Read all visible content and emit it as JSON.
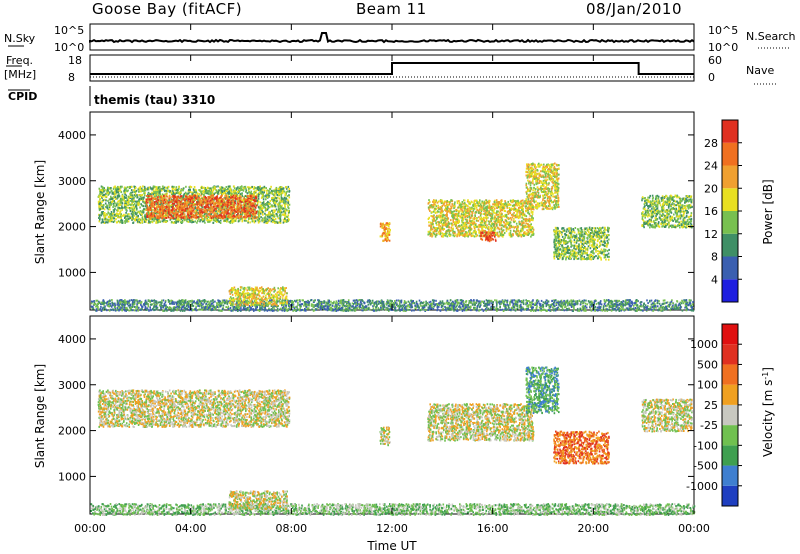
{
  "header": {
    "station": "Goose Bay (fitACF)",
    "beam": "Beam 11",
    "date": "08/Jan/2010"
  },
  "status_panels": {
    "nsky_label": "N.Sky",
    "nsky_ticks": [
      "10^5",
      "10^0"
    ],
    "nsearch_label": "N.Search",
    "nsearch_ticks": [
      "10^5",
      "10^0"
    ],
    "freq_label_1": "Freq.",
    "freq_label_2": "[MHz]",
    "freq_ticks": [
      "18",
      "8"
    ],
    "nave_label": "Nave",
    "nave_ticks": [
      "60",
      "0"
    ],
    "cpid_label": "CPID",
    "cpid_text": "themis (tau) 3310"
  },
  "chart_data": [
    {
      "type": "heatmap",
      "name": "power",
      "ylabel": "Slant Range [km]",
      "yticks": [
        "1000",
        "2000",
        "3000",
        "4000"
      ],
      "ylim": [
        180,
        4500
      ],
      "xlim": [
        0,
        24
      ],
      "colorbar": {
        "label": "Power [dB]",
        "ticks": [
          "4",
          "8",
          "12",
          "16",
          "20",
          "24",
          "28"
        ],
        "colors": [
          "#1f1fe0",
          "#3a5fb0",
          "#3f8f66",
          "#78c050",
          "#e8e020",
          "#f0a030",
          "#f07020",
          "#e03020"
        ]
      },
      "regions": [
        {
          "t0": 0.3,
          "t1": 7.9,
          "r0": 2100,
          "r1": 2900,
          "level": 3
        },
        {
          "t0": 2.2,
          "t1": 6.6,
          "r0": 2200,
          "r1": 2700,
          "level": 6
        },
        {
          "t0": 11.5,
          "t1": 11.9,
          "r0": 1700,
          "r1": 2100,
          "level": 5
        },
        {
          "t0": 13.4,
          "t1": 17.6,
          "r0": 1800,
          "r1": 2600,
          "level": 4
        },
        {
          "t0": 15.5,
          "t1": 16.1,
          "r0": 1700,
          "r1": 1900,
          "level": 7
        },
        {
          "t0": 17.3,
          "t1": 18.6,
          "r0": 2400,
          "r1": 3400,
          "level": 4
        },
        {
          "t0": 18.4,
          "t1": 20.6,
          "r0": 1300,
          "r1": 2000,
          "level": 3
        },
        {
          "t0": 21.9,
          "t1": 23.9,
          "r0": 2000,
          "r1": 2700,
          "level": 3
        },
        {
          "t0": 0.0,
          "t1": 24.0,
          "r0": 180,
          "r1": 420,
          "level": 2
        },
        {
          "t0": 5.5,
          "t1": 7.8,
          "r0": 300,
          "r1": 700,
          "level": 4
        }
      ]
    },
    {
      "type": "heatmap",
      "name": "velocity",
      "ylabel": "Slant Range [km]",
      "yticks": [
        "1000",
        "2000",
        "3000",
        "4000"
      ],
      "ylim": [
        180,
        4500
      ],
      "xlim": [
        0,
        24
      ],
      "xticks": [
        "00:00",
        "04:00",
        "08:00",
        "12:00",
        "16:00",
        "20:00",
        "00:00"
      ],
      "xlabel": "Time UT",
      "colorbar": {
        "label": "Velocity [m s^-1]",
        "ticks": [
          "1000",
          "500",
          "100",
          "25",
          "-25",
          "-100",
          "-500",
          "-1000"
        ],
        "colors": [
          "#1f3fc0",
          "#3f7fd0",
          "#3f9f50",
          "#70c050",
          "#c8c8c0",
          "#f0a020",
          "#f07020",
          "#e03020",
          "#e01010"
        ]
      },
      "regions": [
        {
          "t0": 0.3,
          "t1": 7.9,
          "r0": 2100,
          "r1": 2900,
          "level": 4
        },
        {
          "t0": 11.5,
          "t1": 11.9,
          "r0": 1700,
          "r1": 2100,
          "level": 4
        },
        {
          "t0": 13.4,
          "t1": 17.6,
          "r0": 1800,
          "r1": 2600,
          "level": 4
        },
        {
          "t0": 17.3,
          "t1": 18.6,
          "r0": 2400,
          "r1": 3400,
          "level": 2
        },
        {
          "t0": 18.4,
          "t1": 20.6,
          "r0": 1300,
          "r1": 2000,
          "level": 6
        },
        {
          "t0": 21.9,
          "t1": 23.9,
          "r0": 2000,
          "r1": 2700,
          "level": 4
        },
        {
          "t0": 0.0,
          "t1": 24.0,
          "r0": 180,
          "r1": 420,
          "level": 3
        },
        {
          "t0": 5.5,
          "t1": 7.8,
          "r0": 300,
          "r1": 700,
          "level": 4
        }
      ]
    }
  ]
}
